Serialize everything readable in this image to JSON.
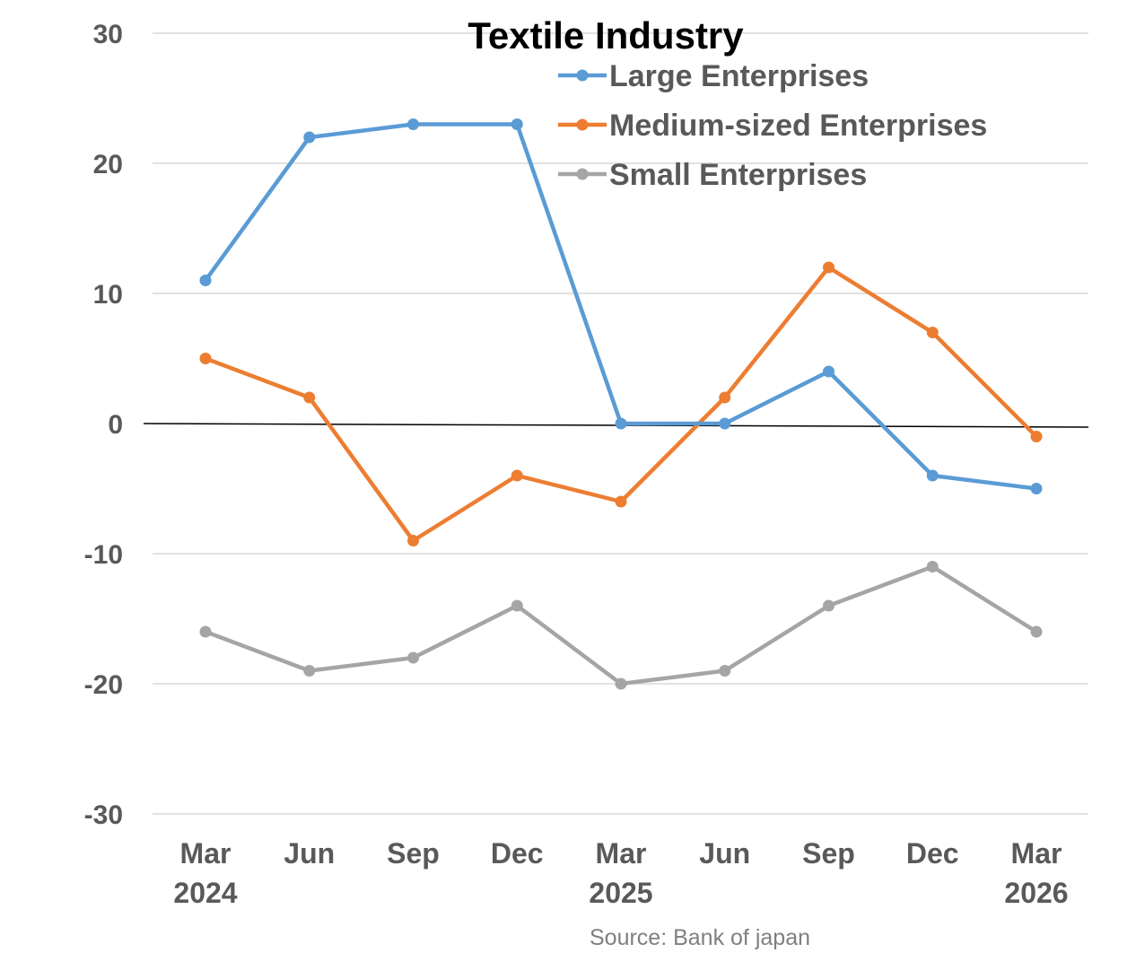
{
  "chart_data": {
    "type": "line",
    "title": "Textile Industry",
    "categories": [
      [
        "Mar",
        "2024"
      ],
      [
        "Jun",
        ""
      ],
      [
        "Sep",
        ""
      ],
      [
        "Dec",
        ""
      ],
      [
        "Mar",
        "2025"
      ],
      [
        "Jun",
        ""
      ],
      [
        "Sep",
        ""
      ],
      [
        "Dec",
        ""
      ],
      [
        "Mar",
        "2026"
      ]
    ],
    "series": [
      {
        "name": "Large Enterprises",
        "color": "#5b9bd5",
        "values": [
          11,
          22,
          23,
          23,
          0,
          0,
          4,
          -4,
          -5
        ]
      },
      {
        "name": "Medium-sized Enterprises",
        "color": "#ed7d31",
        "values": [
          5,
          2,
          -9,
          -4,
          -6,
          2,
          12,
          7,
          -1
        ]
      },
      {
        "name": "Small Enterprises",
        "color": "#a5a5a5",
        "values": [
          -16,
          -19,
          -18,
          -14,
          -20,
          -19,
          -14,
          -11,
          -16
        ]
      }
    ],
    "ylim": [
      -30,
      30
    ],
    "yticks": [
      30,
      20,
      10,
      0,
      -10,
      -20,
      -30
    ],
    "grid": true,
    "legend_position": "top-right",
    "xlabel": "",
    "ylabel": "",
    "source": "Source: Bank of japan"
  }
}
